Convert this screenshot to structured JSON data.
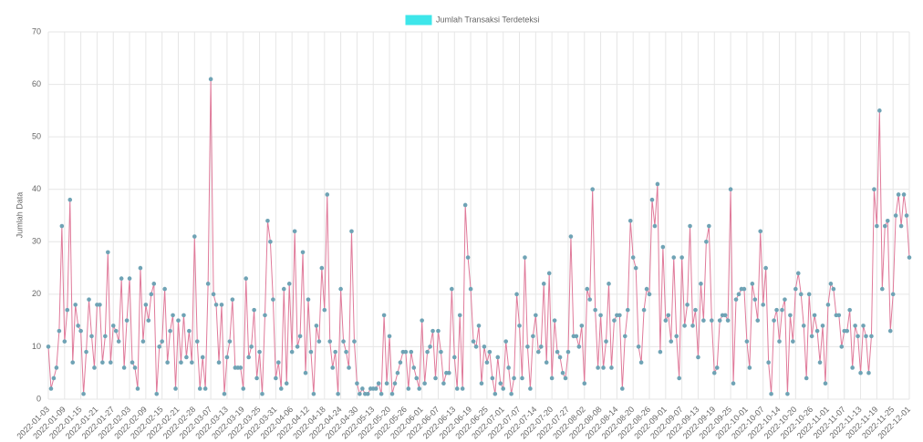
{
  "chart_data": {
    "type": "line",
    "y_label": "Jumlah Data",
    "categories": [
      "2022-01-03",
      null,
      null,
      null,
      null,
      null,
      "2022-01-09",
      null,
      null,
      null,
      null,
      null,
      "2022-01-15",
      null,
      null,
      null,
      null,
      null,
      "2022-01-21",
      null,
      null,
      null,
      null,
      null,
      "2022-01-27",
      null,
      null,
      null,
      null,
      null,
      "2022-02-03",
      null,
      null,
      null,
      null,
      null,
      "2022-02-09",
      null,
      null,
      null,
      null,
      null,
      "2022-02-15",
      null,
      null,
      null,
      null,
      null,
      "2022-02-21",
      null,
      null,
      null,
      null,
      null,
      "2022-02-28",
      null,
      null,
      null,
      null,
      null,
      "2022-03-07",
      null,
      null,
      null,
      null,
      null,
      "2022-03-13",
      null,
      null,
      null,
      null,
      null,
      "2022-03-19",
      null,
      null,
      null,
      null,
      null,
      "2022-03-25",
      null,
      null,
      null,
      null,
      null,
      "2022-03-31",
      null,
      null,
      null,
      null,
      null,
      "2022-04-06",
      null,
      null,
      null,
      null,
      null,
      "2022-04-12",
      null,
      null,
      null,
      null,
      null,
      "2022-04-18",
      null,
      null,
      null,
      null,
      null,
      "2022-04-24",
      null,
      null,
      null,
      null,
      null,
      "2022-04-30",
      null,
      null,
      null,
      null,
      null,
      "2022-05-13",
      null,
      null,
      null,
      null,
      null,
      "2022-05-20",
      null,
      null,
      null,
      null,
      null,
      "2022-05-26",
      null,
      null,
      null,
      null,
      null,
      "2022-06-01",
      null,
      null,
      null,
      null,
      null,
      "2022-06-07",
      null,
      null,
      null,
      null,
      null,
      "2022-06-13",
      null,
      null,
      null,
      null,
      null,
      "2022-06-19",
      null,
      null,
      null,
      null,
      null,
      "2022-06-25",
      null,
      null,
      null,
      null,
      null,
      "2022-07-01",
      null,
      null,
      null,
      null,
      null,
      "2022-07-07",
      null,
      null,
      null,
      null,
      null,
      "2022-07-14",
      null,
      null,
      null,
      null,
      null,
      "2022-07-20",
      null,
      null,
      null,
      null,
      null,
      "2022-07-27",
      null,
      null,
      null,
      null,
      null,
      "2022-08-02",
      null,
      null,
      null,
      null,
      null,
      "2022-08-08",
      null,
      null,
      null,
      null,
      null,
      "2022-08-14",
      null,
      null,
      null,
      null,
      null,
      "2022-08-20",
      null,
      null,
      null,
      null,
      null,
      "2022-08-26",
      null,
      null,
      null,
      null,
      null,
      "2022-09-01",
      null,
      null,
      null,
      null,
      null,
      "2022-09-07",
      null,
      null,
      null,
      null,
      null,
      "2022-09-13",
      null,
      null,
      null,
      null,
      null,
      "2022-09-19",
      null,
      null,
      null,
      null,
      null,
      "2022-09-25",
      null,
      null,
      null,
      null,
      null,
      "2022-10-01",
      null,
      null,
      null,
      null,
      null,
      "2022-10-07",
      null,
      null,
      null,
      null,
      null,
      "2022-10-14",
      null,
      null,
      null,
      null,
      null,
      "2022-10-20",
      null,
      null,
      null,
      null,
      null,
      "2022-10-26",
      null,
      null,
      null,
      null,
      null,
      "2022-11-01",
      null,
      null,
      null,
      null,
      null,
      "2022-11-07",
      null,
      null,
      null,
      null,
      null,
      "2022-11-13",
      null,
      null,
      null,
      null,
      null,
      "2022-11-19",
      null,
      null,
      null,
      null,
      null,
      "2022-11-25",
      null,
      null,
      null,
      null,
      null,
      "2022-12-01"
    ],
    "series": [
      {
        "name": "Jumlah Transaksi Terdeteksi",
        "color": "#e07a9a",
        "point_color": "#6fa3b5",
        "legend_color": "#3ee6ea",
        "values": [
          10,
          2,
          4,
          6,
          13,
          33,
          11,
          17,
          38,
          7,
          18,
          14,
          13,
          1,
          9,
          19,
          12,
          6,
          18,
          18,
          7,
          12,
          28,
          7,
          14,
          13,
          11,
          23,
          6,
          15,
          23,
          7,
          6,
          2,
          25,
          11,
          18,
          15,
          20,
          22,
          1,
          10,
          11,
          21,
          7,
          13,
          16,
          2,
          15,
          7,
          16,
          8,
          13,
          7,
          31,
          11,
          2,
          8,
          2,
          22,
          61,
          20,
          18,
          7,
          18,
          1,
          8,
          11,
          19,
          6,
          6,
          6,
          2,
          23,
          8,
          10,
          17,
          4,
          9,
          1,
          16,
          34,
          30,
          19,
          4,
          7,
          2,
          21,
          3,
          22,
          9,
          32,
          10,
          12,
          28,
          5,
          19,
          9,
          1,
          14,
          11,
          25,
          17,
          39,
          11,
          6,
          9,
          1,
          21,
          11,
          9,
          6,
          32,
          11,
          3,
          1,
          2,
          1,
          1,
          2,
          2,
          2,
          3,
          1,
          16,
          3,
          12,
          1,
          3,
          5,
          7,
          9,
          9,
          2,
          9,
          6,
          4,
          2,
          15,
          3,
          9,
          10,
          13,
          4,
          13,
          9,
          3,
          5,
          5,
          21,
          8,
          2,
          16,
          2,
          37,
          27,
          21,
          11,
          10,
          14,
          3,
          10,
          7,
          9,
          4,
          1,
          8,
          3,
          2,
          11,
          6,
          1,
          4,
          20,
          14,
          4,
          27,
          10,
          2,
          12,
          16,
          9,
          10,
          22,
          7,
          24,
          4,
          15,
          9,
          8,
          5,
          4,
          9,
          31,
          12,
          12,
          10,
          14,
          3,
          21,
          19,
          40,
          17,
          6,
          16,
          6,
          11,
          22,
          6,
          15,
          16,
          16,
          2,
          12,
          17,
          34,
          27,
          25,
          10,
          7,
          17,
          21,
          20,
          38,
          33,
          41,
          9,
          29,
          15,
          16,
          11,
          27,
          12,
          4,
          27,
          14,
          18,
          33,
          14,
          17,
          8,
          22,
          15,
          30,
          33,
          15,
          5,
          6,
          15,
          16,
          16,
          15,
          40,
          3,
          19,
          20,
          21,
          21,
          11,
          6,
          22,
          19,
          15,
          32,
          18,
          25,
          7,
          1,
          15,
          17,
          11,
          17,
          19,
          1,
          16,
          11,
          21,
          24,
          20,
          14,
          4,
          20,
          12,
          16,
          13,
          7,
          14,
          3,
          18,
          22,
          21,
          16,
          16,
          10,
          13,
          13,
          17,
          6,
          14,
          12,
          5,
          14,
          12,
          5,
          12,
          40,
          33,
          55,
          21,
          33,
          34,
          13,
          20,
          35,
          39,
          33,
          39,
          35,
          27
        ]
      }
    ],
    "ylim": [
      0,
      70
    ],
    "yticks": [
      0,
      10,
      20,
      30,
      40,
      50,
      60,
      70
    ],
    "grid": true
  }
}
